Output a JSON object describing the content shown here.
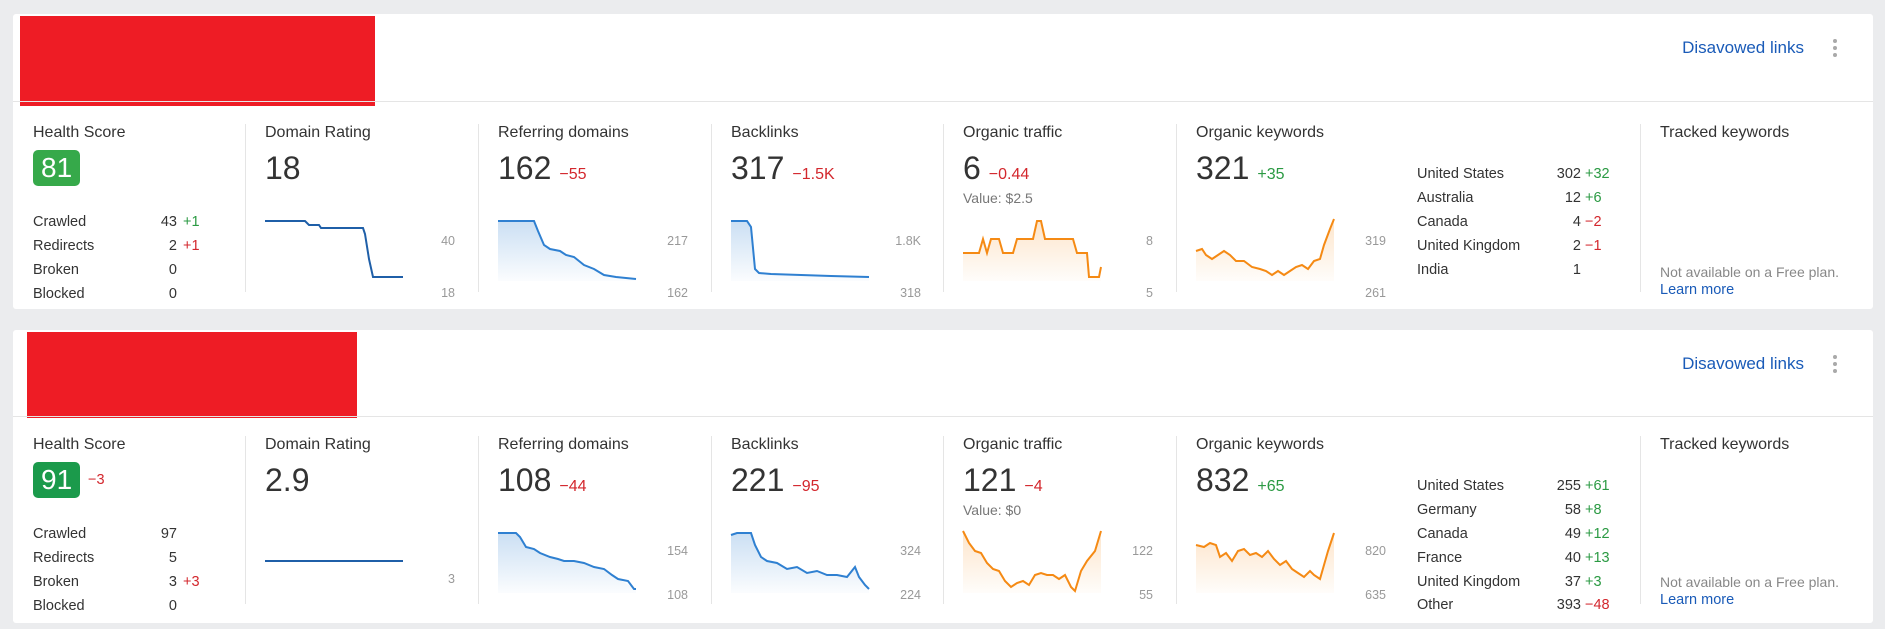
{
  "cards": [
    {
      "disavowed_label": "Disavowed links",
      "health": {
        "label": "Health Score",
        "score": "81",
        "score_color": "#36a94a",
        "score_delta": "",
        "rows": [
          {
            "label": "Crawled",
            "value": "43",
            "delta": "+1",
            "delta_sign": "pos"
          },
          {
            "label": "Redirects",
            "value": "2",
            "delta": "+1",
            "delta_sign": "neg"
          },
          {
            "label": "Broken",
            "value": "0",
            "delta": "",
            "delta_sign": ""
          },
          {
            "label": "Blocked",
            "value": "0",
            "delta": "",
            "delta_sign": ""
          }
        ]
      },
      "domain_rating": {
        "label": "Domain Rating",
        "value": "18",
        "delta": "",
        "axis_top": "40",
        "axis_bottom": "18"
      },
      "referring_domains": {
        "label": "Referring domains",
        "value": "162",
        "delta": "−55",
        "axis_top": "217",
        "axis_bottom": "162"
      },
      "backlinks": {
        "label": "Backlinks",
        "value": "317",
        "delta": "−1.5K",
        "axis_top": "1.8K",
        "axis_bottom": "318"
      },
      "organic_traffic": {
        "label": "Organic traffic",
        "value": "6",
        "delta": "−0.44",
        "sub": "Value: $2.5",
        "axis_top": "8",
        "axis_bottom": "5"
      },
      "organic_keywords": {
        "label": "Organic keywords",
        "value": "321",
        "delta": "+35",
        "axis_top": "319",
        "axis_bottom": "261"
      },
      "countries": [
        {
          "name": "United States",
          "value": "302",
          "delta": "+32",
          "sign": "pos"
        },
        {
          "name": "Australia",
          "value": "12",
          "delta": "+6",
          "sign": "pos"
        },
        {
          "name": "Canada",
          "value": "4",
          "delta": "−2",
          "sign": "neg"
        },
        {
          "name": "United Kingdom",
          "value": "2",
          "delta": "−1",
          "sign": "neg"
        },
        {
          "name": "India",
          "value": "1",
          "delta": "",
          "sign": ""
        }
      ],
      "tracked": {
        "label": "Tracked keywords",
        "note": "Not available on a Free plan.",
        "link": "Learn more"
      }
    },
    {
      "disavowed_label": "Disavowed links",
      "health": {
        "label": "Health Score",
        "score": "91",
        "score_color": "#1b9a4b",
        "score_delta": "−3",
        "rows": [
          {
            "label": "Crawled",
            "value": "97",
            "delta": "",
            "delta_sign": ""
          },
          {
            "label": "Redirects",
            "value": "5",
            "delta": "",
            "delta_sign": ""
          },
          {
            "label": "Broken",
            "value": "3",
            "delta": "+3",
            "delta_sign": "neg"
          },
          {
            "label": "Blocked",
            "value": "0",
            "delta": "",
            "delta_sign": ""
          }
        ]
      },
      "domain_rating": {
        "label": "Domain Rating",
        "value": "2.9",
        "delta": "",
        "axis_top": "",
        "axis_bottom": "3"
      },
      "referring_domains": {
        "label": "Referring domains",
        "value": "108",
        "delta": "−44",
        "axis_top": "154",
        "axis_bottom": "108"
      },
      "backlinks": {
        "label": "Backlinks",
        "value": "221",
        "delta": "−95",
        "axis_top": "324",
        "axis_bottom": "224"
      },
      "organic_traffic": {
        "label": "Organic traffic",
        "value": "121",
        "delta": "−4",
        "sub": "Value: $0",
        "axis_top": "122",
        "axis_bottom": "55"
      },
      "organic_keywords": {
        "label": "Organic keywords",
        "value": "832",
        "delta": "+65",
        "axis_top": "820",
        "axis_bottom": "635"
      },
      "countries": [
        {
          "name": "United States",
          "value": "255",
          "delta": "+61",
          "sign": "pos"
        },
        {
          "name": "Germany",
          "value": "58",
          "delta": "+8",
          "sign": "pos"
        },
        {
          "name": "Canada",
          "value": "49",
          "delta": "+12",
          "sign": "pos"
        },
        {
          "name": "France",
          "value": "40",
          "delta": "+13",
          "sign": "pos"
        },
        {
          "name": "United Kingdom",
          "value": "37",
          "delta": "+3",
          "sign": "pos"
        },
        {
          "name": "Other",
          "value": "393",
          "delta": "−48",
          "sign": "neg"
        }
      ],
      "tracked": {
        "label": "Tracked keywords",
        "note": "Not available on a Free plan.",
        "link": "Learn more"
      }
    }
  ],
  "colors": {
    "blue_line": "#2f80d1",
    "orange_line": "#f58a14",
    "link": "#1a5bb8",
    "negative": "#d3272d",
    "positive": "#2b9a43"
  }
}
